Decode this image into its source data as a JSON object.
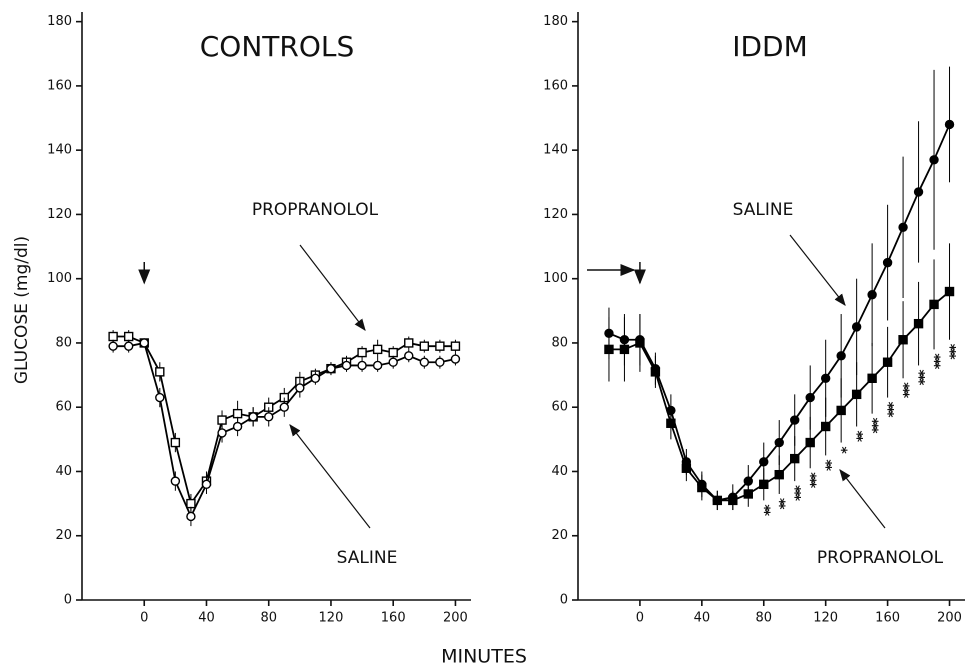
{
  "x_label": "MINUTES",
  "chart_data": [
    {
      "type": "line",
      "title": "CONTROLS",
      "y_label": "GLUCOSE (mg/dl)",
      "x": [
        -20,
        -10,
        0,
        10,
        20,
        30,
        40,
        50,
        60,
        70,
        80,
        90,
        100,
        110,
        120,
        130,
        140,
        150,
        160,
        170,
        180,
        190,
        200
      ],
      "series": [
        {
          "name": "PROPRANOLOL",
          "color": "#000000",
          "marker": "square",
          "filled": false,
          "values": [
            82,
            82,
            80,
            71,
            49,
            30,
            37,
            56,
            58,
            57,
            60,
            63,
            68,
            70,
            72,
            74,
            77,
            78,
            77,
            80,
            79,
            79,
            79
          ],
          "errors": [
            2,
            2,
            1,
            3,
            3,
            3,
            3,
            3,
            4,
            3,
            3,
            3,
            3,
            2,
            2,
            2,
            2,
            3,
            2,
            2,
            2,
            2,
            2
          ]
        },
        {
          "name": "SALINE",
          "color": "#000000",
          "marker": "circle",
          "filled": false,
          "values": [
            79,
            79,
            80,
            63,
            37,
            26,
            36,
            52,
            54,
            57,
            57,
            60,
            66,
            69,
            72,
            73,
            73,
            73,
            74,
            76,
            74,
            74,
            75
          ],
          "errors": [
            2,
            2,
            1,
            3,
            3,
            3,
            3,
            3,
            3,
            3,
            3,
            3,
            3,
            2,
            2,
            2,
            2,
            2,
            2,
            2,
            2,
            2,
            2
          ]
        }
      ],
      "xlim": [
        -40,
        210
      ],
      "xticks": [
        0,
        40,
        80,
        120,
        160,
        200
      ],
      "ylim": [
        0,
        183
      ],
      "yticks": [
        0,
        20,
        40,
        60,
        80,
        100,
        120,
        140,
        160,
        180
      ]
    },
    {
      "type": "line",
      "title": "IDDM",
      "x": [
        -20,
        -10,
        0,
        10,
        20,
        30,
        40,
        50,
        60,
        70,
        80,
        90,
        100,
        110,
        120,
        130,
        140,
        150,
        160,
        170,
        180,
        190,
        200
      ],
      "series": [
        {
          "name": "SALINE",
          "color": "#000000",
          "marker": "circle",
          "filled": true,
          "values": [
            83,
            81,
            81,
            72,
            59,
            43,
            36,
            31,
            32,
            37,
            43,
            49,
            56,
            63,
            69,
            76,
            85,
            95,
            105,
            116,
            127,
            137,
            148
          ],
          "errors": [
            8,
            8,
            8,
            5,
            5,
            4,
            4,
            3,
            4,
            5,
            6,
            7,
            8,
            10,
            12,
            13,
            15,
            16,
            18,
            22,
            22,
            28,
            18
          ]
        },
        {
          "name": "PROPRANOLOL",
          "color": "#000000",
          "marker": "square",
          "filled": true,
          "values": [
            78,
            78,
            80,
            71,
            55,
            41,
            35,
            31,
            31,
            33,
            36,
            39,
            44,
            49,
            54,
            59,
            64,
            69,
            74,
            81,
            86,
            92,
            96
          ],
          "errors": [
            10,
            10,
            9,
            5,
            5,
            4,
            4,
            3,
            3,
            4,
            5,
            6,
            7,
            8,
            9,
            10,
            10,
            11,
            11,
            12,
            13,
            14,
            15
          ]
        }
      ],
      "significance": {
        "x": [
          80,
          90,
          100,
          110,
          120,
          130,
          140,
          150,
          160,
          170,
          180,
          190,
          200
        ],
        "labels": [
          "**",
          "**",
          "***",
          "***",
          "**",
          "*",
          "**",
          "***",
          "***",
          "***",
          "***",
          "***",
          "***"
        ]
      },
      "xlim": [
        -40,
        210
      ],
      "xticks": [
        0,
        40,
        80,
        120,
        160,
        200
      ],
      "ylim": [
        0,
        183
      ],
      "yticks": [
        0,
        20,
        40,
        60,
        80,
        100,
        120,
        140,
        160,
        180
      ]
    }
  ]
}
